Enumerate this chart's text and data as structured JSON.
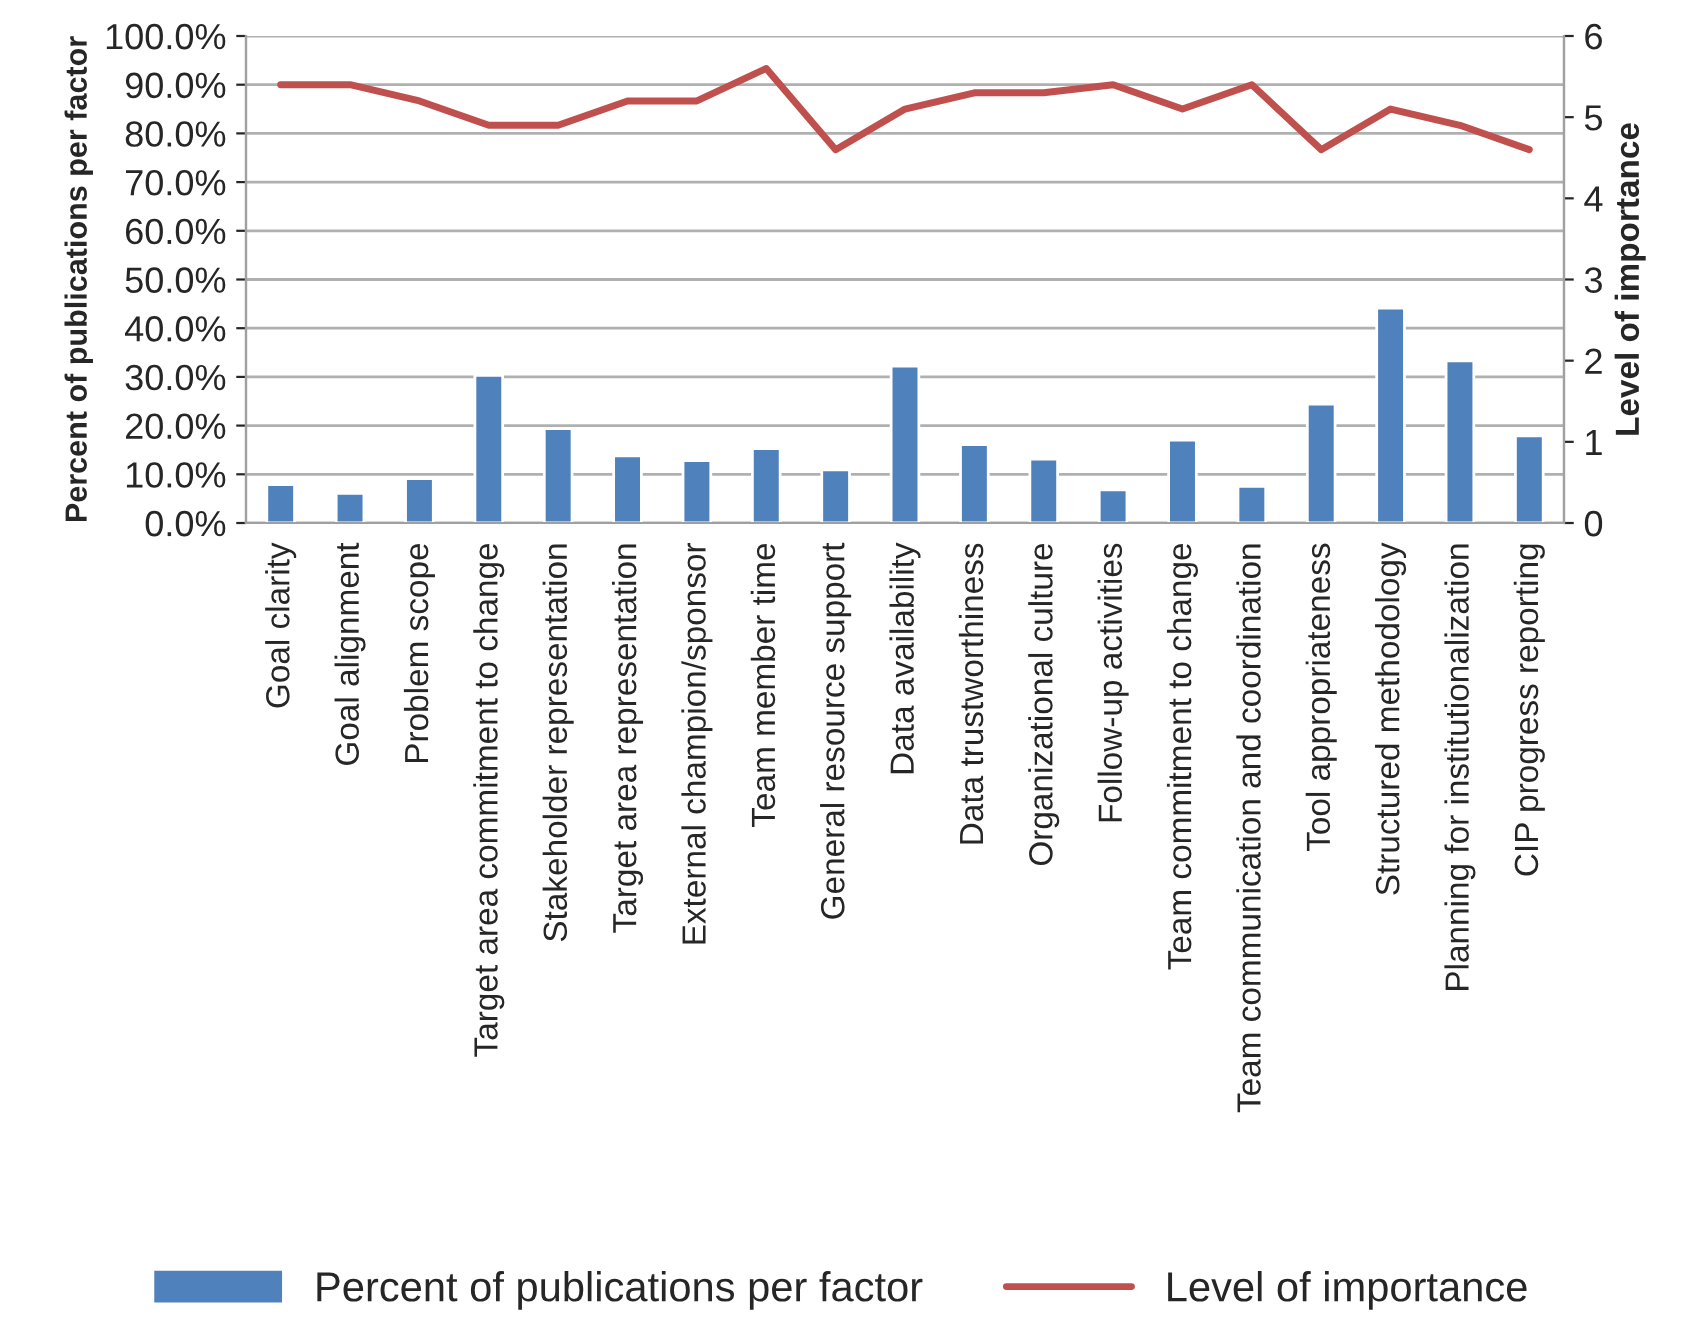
{
  "chart_data": {
    "type": "bar",
    "ylabel": "Percent of publications per factor",
    "y2label": "Level of importance",
    "categories": [
      "Goal clarity",
      "Goal alignment",
      "Problem scope",
      "Target area commitment to change",
      "Stakeholder representation",
      "Target area representation",
      "External champion/sponsor",
      "Team member time",
      "General resource support",
      "Data availability",
      "Data trustworthiness",
      "Organizational culture",
      "Follow-up activities",
      "Team commitment to change",
      "Team communication and coordination",
      "Tool appropriateness",
      "Structured methodology",
      "Planning for institutionalization",
      "CIP progress reporting"
    ],
    "series": [
      {
        "name": "Percent of publications per factor",
        "color": "#4f81bd",
        "values": [
          7.9,
          6.1,
          9.1,
          30.3,
          19.4,
          13.8,
          12.8,
          15.3,
          10.9,
          32.2,
          16.1,
          13.1,
          6.8,
          17.0,
          7.5,
          24.4,
          44.1,
          33.3,
          17.9
        ]
      },
      {
        "name": "Level of importance",
        "type": "line",
        "axis": "y2",
        "color": "#c0504d",
        "values": [
          5.4,
          5.4,
          5.2,
          4.9,
          4.9,
          5.2,
          5.2,
          5.6,
          4.6,
          5.1,
          5.3,
          5.3,
          5.4,
          5.1,
          5.4,
          4.6,
          5.1,
          4.9,
          4.6
        ]
      }
    ],
    "ylim": [
      0,
      100
    ],
    "yticks": [
      {
        "value": 0,
        "label": "0.0%"
      },
      {
        "value": 10,
        "label": "10.0%"
      },
      {
        "value": 20,
        "label": "20.0%"
      },
      {
        "value": 30,
        "label": "30.0%"
      },
      {
        "value": 40,
        "label": "40.0%"
      },
      {
        "value": 50,
        "label": "50.0%"
      },
      {
        "value": 60,
        "label": "60.0%"
      },
      {
        "value": 70,
        "label": "70.0%"
      },
      {
        "value": 80,
        "label": "80.0%"
      },
      {
        "value": 90,
        "label": "90.0%"
      },
      {
        "value": 100,
        "label": "100.0%"
      }
    ],
    "y2lim": [
      0,
      6
    ],
    "y2ticks": [
      0,
      1,
      2,
      3,
      4,
      5,
      6
    ],
    "grid": "y",
    "legend": "bottom",
    "marker": "none"
  }
}
